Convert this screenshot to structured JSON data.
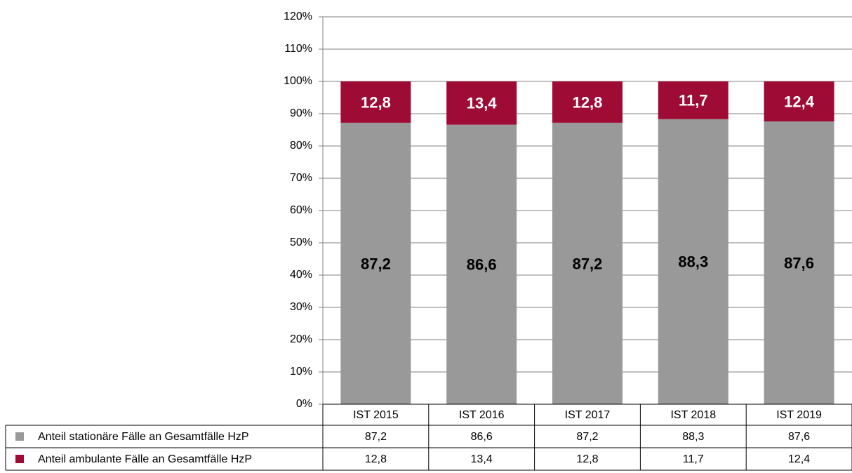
{
  "chart_data": {
    "type": "stacked_bar",
    "categories": [
      "IST 2015",
      "IST 2016",
      "IST 2017",
      "IST 2018",
      "IST 2019"
    ],
    "series": [
      {
        "name": "Anteil stationäre Fälle an Gesamtfälle HzP",
        "color": "#999999",
        "label_color": "#000000",
        "values": [
          87.2,
          86.6,
          87.2,
          88.3,
          87.6
        ],
        "value_labels": [
          "87,2",
          "86,6",
          "87,2",
          "88,3",
          "87,6"
        ]
      },
      {
        "name": "Anteil ambulante Fälle an Gesamtfälle HzP",
        "color": "#9e0b35",
        "label_color": "#ffffff",
        "values": [
          12.8,
          13.4,
          12.8,
          11.7,
          12.4
        ],
        "value_labels": [
          "12,8",
          "13,4",
          "12,8",
          "11,7",
          "12,4"
        ]
      }
    ],
    "ylim": [
      0,
      120
    ],
    "yticks": [
      {
        "value": 0,
        "label": "0%"
      },
      {
        "value": 10,
        "label": "10%"
      },
      {
        "value": 20,
        "label": "20%"
      },
      {
        "value": 30,
        "label": "30%"
      },
      {
        "value": 40,
        "label": "40%"
      },
      {
        "value": 50,
        "label": "50%"
      },
      {
        "value": 60,
        "label": "60%"
      },
      {
        "value": 70,
        "label": "70%"
      },
      {
        "value": 80,
        "label": "80%"
      },
      {
        "value": 90,
        "label": "90%"
      },
      {
        "value": 100,
        "label": "100%"
      },
      {
        "value": 110,
        "label": "110%"
      },
      {
        "value": 120,
        "label": "120%"
      }
    ],
    "grid": true,
    "data_table": true
  }
}
